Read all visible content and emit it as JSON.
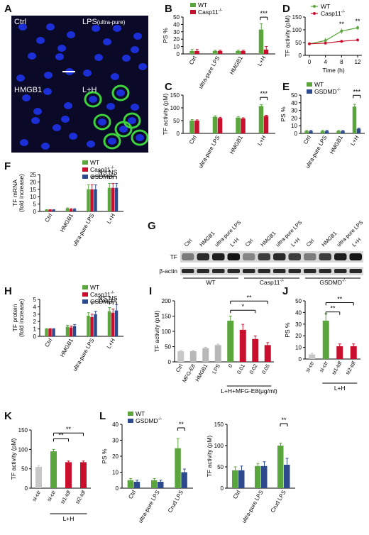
{
  "colors": {
    "wt": "#5aa63d",
    "casp11": "#c8102e",
    "gsdmd": "#2e4a8f",
    "ctrl": "#c7c7c7",
    "grey": "#b8b8b8",
    "bg": "#0a0a28",
    "nucleus": "#1c2fd6",
    "membrane": "#3fd23f"
  },
  "panels": {
    "A": {
      "letter": "A",
      "images": [
        {
          "label": "Ctrl"
        },
        {
          "label": "LPS",
          "sub": "(ultra-pure)"
        },
        {
          "label": "HMGB1"
        },
        {
          "label": "L+H"
        }
      ]
    },
    "B": {
      "letter": "B"
    },
    "C": {
      "letter": "C"
    },
    "D": {
      "letter": "D"
    },
    "E": {
      "letter": "E"
    },
    "F": {
      "letter": "F"
    },
    "G": {
      "letter": "G"
    },
    "H": {
      "letter": "H"
    },
    "I": {
      "letter": "I"
    },
    "J": {
      "letter": "J"
    },
    "K": {
      "letter": "K"
    },
    "L": {
      "letter": "L"
    }
  },
  "blot": {
    "lanes": [
      "Ctrl",
      "HMGB1",
      "ultra-pure LPS",
      "L+H",
      "Ctrl",
      "HMGB1",
      "ultra-pure LPS",
      "L+H",
      "Ctrl",
      "HMGB1",
      "ultra-pure LPS",
      "L+H"
    ],
    "rows": [
      "TF",
      "β-actin"
    ],
    "groups": [
      "WT",
      "Casp11",
      "GSDMD"
    ],
    "group_sup": [
      "",
      "-/-",
      "-/-"
    ],
    "tf_intensity": [
      0.45,
      0.85,
      0.9,
      0.95,
      0.4,
      0.75,
      0.85,
      0.75,
      0.45,
      0.75,
      0.9,
      0.95
    ]
  },
  "chart_data": [
    {
      "id": "B",
      "type": "bar",
      "ylabel": "PS %",
      "ylim": [
        0,
        50
      ],
      "yticks": [
        0,
        10,
        20,
        30,
        40,
        50
      ],
      "categories": [
        "Ctrl",
        "ultra-pure LPS",
        "HMGB1",
        "L+H"
      ],
      "series": [
        {
          "name": "WT",
          "sup": "",
          "color": "#5aa63d",
          "values": [
            4,
            4,
            4,
            33
          ],
          "errors": [
            2,
            1,
            1,
            8
          ]
        },
        {
          "name": "Casp11",
          "sup": "-/-",
          "color": "#c8102e",
          "values": [
            4,
            4,
            4,
            6
          ],
          "errors": [
            2,
            1,
            1,
            4
          ]
        }
      ],
      "annotations": [
        {
          "text": "***",
          "between": [
            3,
            3
          ]
        }
      ]
    },
    {
      "id": "C",
      "type": "bar",
      "ylabel": "TF activity (pM)",
      "ylim": [
        0,
        150
      ],
      "yticks": [
        0,
        50,
        100,
        150
      ],
      "categories": [
        "Ctrl",
        "ultra-pure LPS",
        "HMGB1",
        "L+H"
      ],
      "series": [
        {
          "name": "WT",
          "color": "#5aa63d",
          "values": [
            50,
            65,
            62,
            107
          ],
          "errors": [
            4,
            4,
            4,
            6
          ]
        },
        {
          "name": "Casp11",
          "color": "#c8102e",
          "values": [
            50,
            60,
            58,
            68
          ],
          "errors": [
            3,
            3,
            3,
            3
          ]
        }
      ],
      "annotations": [
        {
          "text": "***",
          "between": [
            3,
            3
          ]
        }
      ]
    },
    {
      "id": "D",
      "type": "line",
      "ylabel": "TF activity (pM)",
      "xlabel": "Time (h)",
      "x": [
        0,
        4,
        8,
        12
      ],
      "ylim": [
        0,
        150
      ],
      "yticks": [
        0,
        50,
        100,
        150
      ],
      "series": [
        {
          "name": "WT",
          "sup": "",
          "color": "#5aa63d",
          "values": [
            45,
            58,
            95,
            108
          ],
          "errors": [
            3,
            10,
            10,
            8
          ]
        },
        {
          "name": "Casp11",
          "sup": "-/-",
          "color": "#c8102e",
          "values": [
            45,
            48,
            55,
            60
          ],
          "errors": [
            3,
            5,
            5,
            5
          ]
        }
      ],
      "annotations": [
        {
          "text": "**",
          "x": 8
        },
        {
          "text": "**",
          "x": 12
        }
      ]
    },
    {
      "id": "E",
      "type": "bar",
      "ylabel": "PS %",
      "ylim": [
        0,
        50
      ],
      "yticks": [
        0,
        10,
        20,
        30,
        40,
        50
      ],
      "categories": [
        "Ctrl",
        "ultra-pure LPS",
        "HMGB1",
        "L+H"
      ],
      "series": [
        {
          "name": "WT",
          "sup": "",
          "color": "#5aa63d",
          "values": [
            3,
            3,
            3,
            35
          ],
          "errors": [
            1,
            1,
            1,
            3
          ]
        },
        {
          "name": "GSDMD",
          "sup": "-/-",
          "color": "#2e4a8f",
          "values": [
            3,
            3,
            3,
            6
          ],
          "errors": [
            1,
            1,
            1,
            1
          ]
        }
      ],
      "annotations": [
        {
          "text": "***",
          "between": [
            3,
            3
          ]
        }
      ]
    },
    {
      "id": "F",
      "type": "bar",
      "ylabel": "TF mRNA",
      "ylabel2": "(fold increase)",
      "ylim": [
        0,
        25
      ],
      "yticks": [
        0,
        5,
        10,
        15,
        20,
        25
      ],
      "categories": [
        "Ctrl",
        "HMGB1",
        "ultra-pure LPS",
        "L+H"
      ],
      "series": [
        {
          "name": "WT",
          "sup": "",
          "color": "#5aa63d",
          "values": [
            1,
            2,
            15,
            16
          ],
          "errors": [
            0.2,
            0.4,
            3,
            3
          ]
        },
        {
          "name": "Casp11",
          "sup": "-/-",
          "color": "#c8102e",
          "values": [
            1,
            1.5,
            15,
            16
          ],
          "errors": [
            0.2,
            0.4,
            3,
            3
          ]
        },
        {
          "name": "GSDMD",
          "sup": "-/-",
          "color": "#2e4a8f",
          "values": [
            1,
            1.5,
            15,
            16
          ],
          "errors": [
            0.2,
            0.4,
            3,
            3
          ]
        }
      ],
      "annotations": [
        {
          "text": "NS",
          "between": [
            2,
            3
          ]
        },
        {
          "text": "NS",
          "between": [
            3,
            3
          ]
        }
      ]
    },
    {
      "id": "H",
      "type": "bar",
      "ylabel": "TF protein",
      "ylabel2": "(fold increase)",
      "ylim": [
        0,
        5
      ],
      "yticks": [
        0,
        1,
        2,
        3,
        4,
        5
      ],
      "categories": [
        "Ctrl",
        "HMGB1",
        "ultra-pure LPS",
        "L+H"
      ],
      "series": [
        {
          "name": "WT",
          "sup": "",
          "color": "#5aa63d",
          "values": [
            1,
            1.3,
            2.8,
            3.4
          ],
          "errors": [
            0.05,
            0.2,
            0.4,
            0.5
          ]
        },
        {
          "name": "Casp11",
          "sup": "-/-",
          "color": "#c8102e",
          "values": [
            1,
            1.2,
            2.6,
            3.2
          ],
          "errors": [
            0.05,
            0.2,
            0.4,
            0.5
          ]
        },
        {
          "name": "GSDMD",
          "sup": "-/-",
          "color": "#2e4a8f",
          "values": [
            1,
            1.4,
            3.0,
            3.5
          ],
          "errors": [
            0.05,
            0.2,
            0.4,
            0.8
          ]
        }
      ],
      "annotations": [
        {
          "text": "NS",
          "between": [
            2,
            3
          ]
        },
        {
          "text": "NS",
          "between": [
            3,
            3
          ]
        }
      ]
    },
    {
      "id": "I",
      "type": "bar",
      "ylabel": "TF activity (pM)",
      "ylim": [
        0,
        200
      ],
      "yticks": [
        0,
        50,
        100,
        150,
        200
      ],
      "categories": [
        "Ctrl",
        "MFG-E8",
        "HMGB1",
        "LPS",
        "0",
        "0.01",
        "0.02",
        "0.05"
      ],
      "colors": [
        "#c7c7c7",
        "#b8b8b8",
        "#b8b8b8",
        "#b8b8b8",
        "#5aa63d",
        "#c8102e",
        "#c8102e",
        "#c8102e"
      ],
      "values": [
        35,
        35,
        45,
        55,
        135,
        105,
        75,
        55
      ],
      "errors": [
        2,
        2,
        3,
        3,
        15,
        18,
        10,
        8
      ],
      "group_label": "L+H+MFG-E8(μg/ml)",
      "group_span": [
        4,
        7
      ],
      "annotations": [
        {
          "text": "**",
          "between": [
            4,
            7
          ]
        },
        {
          "text": "*",
          "between": [
            4,
            6
          ]
        }
      ]
    },
    {
      "id": "J",
      "type": "bar",
      "ylabel": "PS %",
      "ylim": [
        0,
        50
      ],
      "yticks": [
        0,
        10,
        20,
        30,
        40,
        50
      ],
      "categories": [
        "si-ctr",
        "si-ctr",
        "si1-tdf",
        "si2-tdf"
      ],
      "colors": [
        "#c7c7c7",
        "#5aa63d",
        "#c8102e",
        "#c8102e"
      ],
      "values": [
        4,
        33,
        11,
        11
      ],
      "errors": [
        1,
        6,
        2,
        2
      ],
      "group_label": "L+H",
      "group_span": [
        1,
        3
      ],
      "annotations": [
        {
          "text": "**",
          "between": [
            1,
            3
          ]
        },
        {
          "text": "**",
          "between": [
            1,
            2
          ]
        }
      ]
    },
    {
      "id": "K",
      "type": "bar",
      "ylabel": "TF activity (pM)",
      "ylim": [
        0,
        150
      ],
      "yticks": [
        0,
        50,
        100,
        150
      ],
      "categories": [
        "si-ctr",
        "si-ctr",
        "si1-tdf",
        "si2-tdf"
      ],
      "colors": [
        "#c7c7c7",
        "#5aa63d",
        "#c8102e",
        "#c8102e"
      ],
      "values": [
        55,
        95,
        67,
        67
      ],
      "errors": [
        3,
        5,
        3,
        3
      ],
      "group_label": "L+H",
      "group_span": [
        1,
        3
      ],
      "annotations": [
        {
          "text": "**",
          "between": [
            1,
            3
          ]
        },
        {
          "text": "**",
          "between": [
            1,
            2
          ]
        }
      ]
    },
    {
      "id": "L1",
      "type": "bar",
      "ylabel": "PS %",
      "ylim": [
        0,
        40
      ],
      "yticks": [
        0,
        10,
        20,
        30,
        40
      ],
      "categories": [
        "Ctrl",
        "ultra-pure LPS",
        "Crud LPS"
      ],
      "series": [
        {
          "name": "WT",
          "sup": "",
          "color": "#5aa63d",
          "values": [
            5,
            5,
            25
          ],
          "errors": [
            1,
            1,
            6
          ]
        },
        {
          "name": "GSDMD",
          "sup": "-/-",
          "color": "#2e4a8f",
          "values": [
            4,
            4,
            10
          ],
          "errors": [
            1,
            1,
            2
          ]
        }
      ],
      "annotations": [
        {
          "text": "**",
          "between": [
            2,
            2
          ]
        }
      ]
    },
    {
      "id": "L2",
      "type": "bar",
      "ylabel": "TF activity (pM)",
      "ylim": [
        0,
        150
      ],
      "yticks": [
        0,
        50,
        100,
        150
      ],
      "categories": [
        "Ctrl",
        "ultra-pure LPS",
        "Crud LPS"
      ],
      "series": [
        {
          "name": "WT",
          "color": "#5aa63d",
          "values": [
            42,
            52,
            100
          ],
          "errors": [
            8,
            6,
            6
          ]
        },
        {
          "name": "GSDMD",
          "color": "#2e4a8f",
          "values": [
            42,
            52,
            55
          ],
          "errors": [
            10,
            10,
            15
          ]
        }
      ],
      "annotations": [
        {
          "text": "**",
          "between": [
            2,
            2
          ]
        }
      ]
    }
  ]
}
